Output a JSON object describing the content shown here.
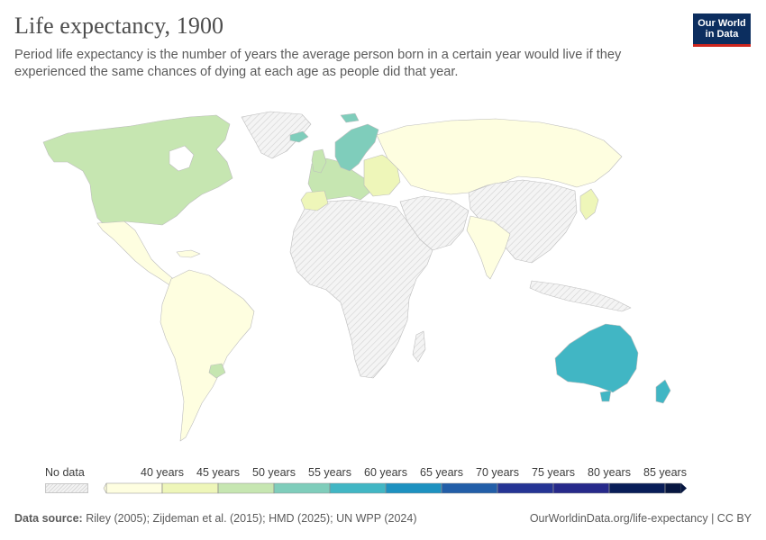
{
  "header": {
    "title": "Life expectancy, 1900",
    "subtitle": "Period life expectancy is the number of years the average person born in a certain year would live if they experienced the same chances of dying at each age as people did that year."
  },
  "logo": {
    "line1": "Our World",
    "line2": "in Data"
  },
  "colors": {
    "no_data": "#e6e6e6",
    "c35_40": "#fefee0",
    "c40_45": "#eef6b9",
    "c45_50": "#c6e6b1",
    "c50_55": "#7fcdbb",
    "c55_60": "#41b6c4",
    "c60_65": "#1d91c0",
    "c65_70": "#225ea8",
    "c70_75": "#253494",
    "c75_80": "#26298a",
    "c80_85": "#081d58",
    "c85_plus": "#061640"
  },
  "legend": {
    "no_data_label": "No data",
    "ticks": [
      "40 years",
      "45 years",
      "50 years",
      "55 years",
      "60 years",
      "65 years",
      "70 years",
      "75 years",
      "80 years",
      "85 years"
    ]
  },
  "footer": {
    "source_label": "Data source:",
    "source_text": "Riley (2005); Zijdeman et al. (2015); HMD (2025); UN WPP (2024)",
    "url": "OurWorldinData.org/life-expectancy | CC BY"
  },
  "regions": [
    {
      "name": "North America",
      "bin": "45-50"
    },
    {
      "name": "Mexico & Central America",
      "bin": "35-40"
    },
    {
      "name": "South America",
      "bin": "35-40"
    },
    {
      "name": "Uruguay",
      "bin": "45-50"
    },
    {
      "name": "Northern Europe",
      "bin": "50-55"
    },
    {
      "name": "Western Europe",
      "bin": "45-50"
    },
    {
      "name": "Russia",
      "bin": "35-40"
    },
    {
      "name": "India",
      "bin": "35-40"
    },
    {
      "name": "Japan",
      "bin": "40-45"
    },
    {
      "name": "Australia & New Zealand",
      "bin": "55-60"
    },
    {
      "name": "Africa",
      "bin": "no data"
    },
    {
      "name": "China",
      "bin": "no data"
    }
  ]
}
